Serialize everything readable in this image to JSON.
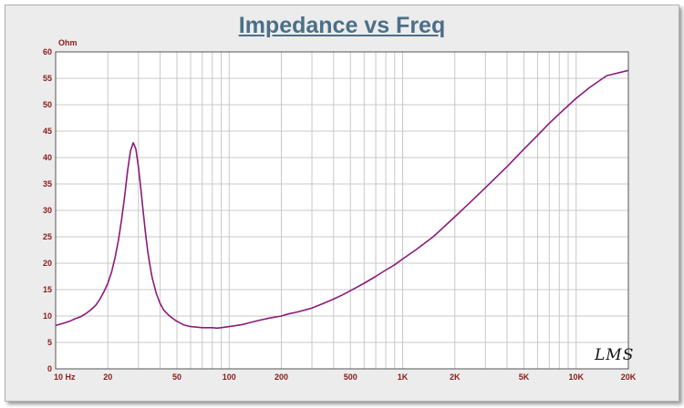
{
  "chart_data": {
    "type": "line",
    "title": "Impedance vs Freq",
    "ylabel": "Ohm",
    "xlabel": "",
    "x_scale": "log",
    "xlim": [
      10,
      20000
    ],
    "ylim": [
      0,
      60
    ],
    "grid": true,
    "x_ticks": [
      10,
      20,
      50,
      100,
      200,
      500,
      1000,
      2000,
      5000,
      10000,
      20000
    ],
    "x_tick_labels": [
      "10  Hz",
      "20",
      "50",
      "100",
      "200",
      "500",
      "1K",
      "2K",
      "5K",
      "10K",
      "20K"
    ],
    "y_ticks": [
      0,
      5,
      10,
      15,
      20,
      25,
      30,
      35,
      40,
      45,
      50,
      55,
      60
    ],
    "series": [
      {
        "color": "#8b1a7a",
        "x": [
          10,
          11,
          12,
          13,
          14,
          15,
          16,
          17,
          18,
          19,
          20,
          21,
          22,
          23,
          24,
          25,
          26,
          27,
          28,
          29,
          30,
          31,
          32,
          33,
          34,
          35,
          36,
          38,
          40,
          42,
          45,
          48,
          50,
          55,
          60,
          65,
          70,
          75,
          80,
          85,
          90,
          95,
          100,
          110,
          120,
          130,
          150,
          170,
          200,
          220,
          250,
          300,
          350,
          400,
          450,
          500,
          600,
          700,
          800,
          900,
          1000,
          1200,
          1500,
          2000,
          2500,
          3000,
          4000,
          5000,
          6000,
          7000,
          8000,
          10000,
          12000,
          15000,
          20000
        ],
        "y": [
          8.2,
          8.6,
          9.0,
          9.5,
          9.9,
          10.5,
          11.2,
          12.0,
          13.2,
          14.6,
          16.2,
          18.3,
          21.0,
          24.3,
          28.2,
          32.7,
          37.5,
          41.3,
          42.8,
          41.6,
          38.2,
          34.0,
          29.6,
          25.6,
          22.1,
          19.5,
          17.3,
          14.3,
          12.4,
          11.1,
          10.1,
          9.4,
          9.0,
          8.3,
          8.0,
          7.9,
          7.8,
          7.8,
          7.8,
          7.7,
          7.8,
          7.9,
          8.0,
          8.2,
          8.4,
          8.7,
          9.2,
          9.6,
          10.0,
          10.4,
          10.8,
          11.5,
          12.4,
          13.2,
          14.0,
          14.8,
          16.2,
          17.5,
          18.7,
          19.7,
          20.8,
          22.6,
          25.0,
          28.8,
          31.8,
          34.3,
          38.3,
          41.6,
          44.2,
          46.5,
          48.3,
          51.2,
          53.3,
          55.5,
          56.5
        ]
      }
    ]
  },
  "labels": {
    "title": "Impedance vs Freq",
    "y_unit": "Ohm",
    "logo": "LMS"
  },
  "colors": {
    "curve": "#8b1a7a",
    "tick_text": "#8b1a1a",
    "title": "#4b6f88",
    "grid": "#c8c8c8",
    "background": "#ececec",
    "plot_background": "#ffffff"
  }
}
